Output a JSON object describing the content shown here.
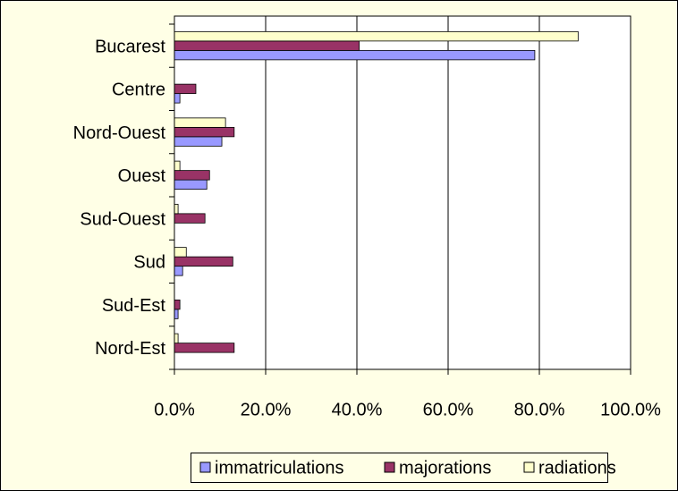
{
  "chart_data": {
    "type": "bar",
    "orientation": "horizontal",
    "categories": [
      "Bucarest",
      "Centre",
      "Nord-Ouest",
      "Ouest",
      "Sud-Ouest",
      "Sud",
      "Sud-Est",
      "Nord-Est"
    ],
    "series": [
      {
        "name": "immatriculations",
        "color": "#9999ff",
        "values": [
          79,
          1.2,
          10.4,
          7.1,
          0,
          1.8,
          0.8,
          0
        ]
      },
      {
        "name": "majorations",
        "color": "#993366",
        "values": [
          40.5,
          4.7,
          13.1,
          7.7,
          6.7,
          12.8,
          1.2,
          13.1
        ]
      },
      {
        "name": "radiations",
        "color": "#ffffcc",
        "values": [
          88.5,
          0,
          11.2,
          1.2,
          0.8,
          2.6,
          0,
          0.8
        ]
      }
    ],
    "xlim": [
      0,
      100
    ],
    "xticks": [
      {
        "value": 0,
        "label": "0.0%"
      },
      {
        "value": 20,
        "label": "20.0%"
      },
      {
        "value": 40,
        "label": "40.0%"
      },
      {
        "value": 60,
        "label": "60.0%"
      },
      {
        "value": 80,
        "label": "80.0%"
      },
      {
        "value": 100,
        "label": "100.0%"
      }
    ],
    "grid": true,
    "legend": "bottom"
  }
}
